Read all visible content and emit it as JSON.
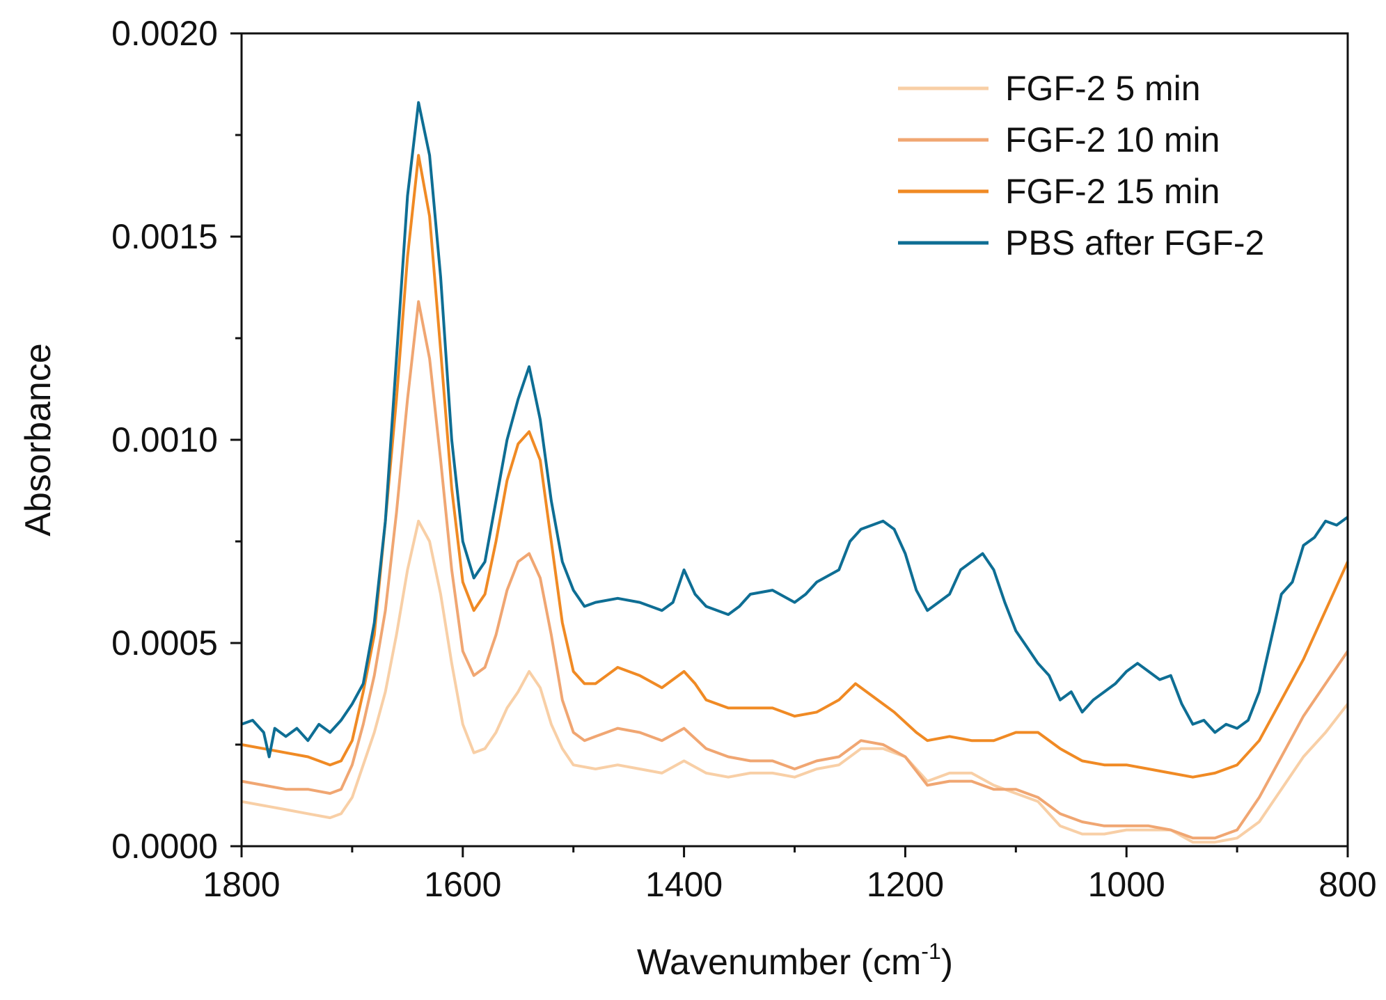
{
  "chart_data": {
    "type": "line",
    "title": "",
    "xlabel": "Wavenumber (cm",
    "xlabel_sup": "-1",
    "xlabel_close": ")",
    "ylabel": "Absorbance",
    "xlim": [
      1800,
      800
    ],
    "ylim": [
      0,
      0.002
    ],
    "x_reversed": true,
    "grid": false,
    "legend_position": "top-right",
    "x_ticks": [
      1800,
      1600,
      1400,
      1200,
      1000,
      800
    ],
    "x_tick_labels": [
      "1800",
      "1600",
      "1400",
      "1200",
      "1000",
      "800"
    ],
    "y_ticks": [
      0,
      0.0005,
      0.001,
      0.0015,
      0.002
    ],
    "y_tick_labels": [
      "0.0000",
      "0.0005",
      "0.0010",
      "0.0015",
      "0.0020"
    ],
    "series": [
      {
        "name": "FGF-2 5 min",
        "color": "#f8cfa6",
        "points": [
          [
            1800,
            0.00011
          ],
          [
            1780,
            0.0001
          ],
          [
            1760,
            9e-05
          ],
          [
            1740,
            8e-05
          ],
          [
            1720,
            7e-05
          ],
          [
            1710,
            8e-05
          ],
          [
            1700,
            0.00012
          ],
          [
            1690,
            0.0002
          ],
          [
            1680,
            0.00028
          ],
          [
            1670,
            0.00038
          ],
          [
            1660,
            0.00052
          ],
          [
            1650,
            0.00068
          ],
          [
            1640,
            0.0008
          ],
          [
            1630,
            0.00075
          ],
          [
            1620,
            0.00062
          ],
          [
            1610,
            0.00045
          ],
          [
            1600,
            0.0003
          ],
          [
            1590,
            0.00023
          ],
          [
            1580,
            0.00024
          ],
          [
            1570,
            0.00028
          ],
          [
            1560,
            0.00034
          ],
          [
            1550,
            0.00038
          ],
          [
            1540,
            0.00043
          ],
          [
            1530,
            0.00039
          ],
          [
            1520,
            0.0003
          ],
          [
            1510,
            0.00024
          ],
          [
            1500,
            0.0002
          ],
          [
            1480,
            0.00019
          ],
          [
            1460,
            0.0002
          ],
          [
            1440,
            0.00019
          ],
          [
            1420,
            0.00018
          ],
          [
            1400,
            0.00021
          ],
          [
            1380,
            0.00018
          ],
          [
            1360,
            0.00017
          ],
          [
            1340,
            0.00018
          ],
          [
            1320,
            0.00018
          ],
          [
            1300,
            0.00017
          ],
          [
            1280,
            0.00019
          ],
          [
            1260,
            0.0002
          ],
          [
            1240,
            0.00024
          ],
          [
            1220,
            0.00024
          ],
          [
            1200,
            0.00022
          ],
          [
            1180,
            0.00016
          ],
          [
            1160,
            0.00018
          ],
          [
            1140,
            0.00018
          ],
          [
            1120,
            0.00015
          ],
          [
            1100,
            0.00013
          ],
          [
            1080,
            0.00011
          ],
          [
            1060,
            5e-05
          ],
          [
            1040,
            3e-05
          ],
          [
            1020,
            3e-05
          ],
          [
            1000,
            4e-05
          ],
          [
            980,
            4e-05
          ],
          [
            960,
            4e-05
          ],
          [
            940,
            1e-05
          ],
          [
            920,
            1e-05
          ],
          [
            900,
            2e-05
          ],
          [
            880,
            6e-05
          ],
          [
            860,
            0.00014
          ],
          [
            840,
            0.00022
          ],
          [
            820,
            0.00028
          ],
          [
            800,
            0.00035
          ]
        ]
      },
      {
        "name": "FGF-2 10 min",
        "color": "#f0a672",
        "points": [
          [
            1800,
            0.00016
          ],
          [
            1780,
            0.00015
          ],
          [
            1760,
            0.00014
          ],
          [
            1740,
            0.00014
          ],
          [
            1720,
            0.00013
          ],
          [
            1710,
            0.00014
          ],
          [
            1700,
            0.0002
          ],
          [
            1690,
            0.0003
          ],
          [
            1680,
            0.00042
          ],
          [
            1670,
            0.00058
          ],
          [
            1660,
            0.00082
          ],
          [
            1650,
            0.0011
          ],
          [
            1640,
            0.00134
          ],
          [
            1630,
            0.0012
          ],
          [
            1620,
            0.00095
          ],
          [
            1610,
            0.00068
          ],
          [
            1600,
            0.00048
          ],
          [
            1590,
            0.00042
          ],
          [
            1580,
            0.00044
          ],
          [
            1570,
            0.00052
          ],
          [
            1560,
            0.00063
          ],
          [
            1550,
            0.0007
          ],
          [
            1540,
            0.00072
          ],
          [
            1530,
            0.00066
          ],
          [
            1520,
            0.00052
          ],
          [
            1510,
            0.00036
          ],
          [
            1500,
            0.00028
          ],
          [
            1490,
            0.00026
          ],
          [
            1480,
            0.00027
          ],
          [
            1460,
            0.00029
          ],
          [
            1440,
            0.00028
          ],
          [
            1420,
            0.00026
          ],
          [
            1400,
            0.00029
          ],
          [
            1380,
            0.00024
          ],
          [
            1360,
            0.00022
          ],
          [
            1340,
            0.00021
          ],
          [
            1320,
            0.00021
          ],
          [
            1300,
            0.00019
          ],
          [
            1280,
            0.00021
          ],
          [
            1260,
            0.00022
          ],
          [
            1240,
            0.00026
          ],
          [
            1220,
            0.00025
          ],
          [
            1200,
            0.00022
          ],
          [
            1180,
            0.00015
          ],
          [
            1160,
            0.00016
          ],
          [
            1140,
            0.00016
          ],
          [
            1120,
            0.00014
          ],
          [
            1100,
            0.00014
          ],
          [
            1080,
            0.00012
          ],
          [
            1060,
            8e-05
          ],
          [
            1040,
            6e-05
          ],
          [
            1020,
            5e-05
          ],
          [
            1000,
            5e-05
          ],
          [
            980,
            5e-05
          ],
          [
            960,
            4e-05
          ],
          [
            940,
            2e-05
          ],
          [
            920,
            2e-05
          ],
          [
            900,
            4e-05
          ],
          [
            880,
            0.00012
          ],
          [
            860,
            0.00022
          ],
          [
            840,
            0.00032
          ],
          [
            820,
            0.0004
          ],
          [
            800,
            0.00048
          ]
        ]
      },
      {
        "name": "FGF-2 15 min",
        "color": "#f08a24",
        "points": [
          [
            1800,
            0.00025
          ],
          [
            1780,
            0.00024
          ],
          [
            1760,
            0.00023
          ],
          [
            1740,
            0.00022
          ],
          [
            1720,
            0.0002
          ],
          [
            1710,
            0.00021
          ],
          [
            1700,
            0.00026
          ],
          [
            1690,
            0.00038
          ],
          [
            1680,
            0.00052
          ],
          [
            1670,
            0.0008
          ],
          [
            1660,
            0.0011
          ],
          [
            1650,
            0.00145
          ],
          [
            1640,
            0.0017
          ],
          [
            1630,
            0.00155
          ],
          [
            1620,
            0.00122
          ],
          [
            1610,
            0.00088
          ],
          [
            1600,
            0.00065
          ],
          [
            1590,
            0.00058
          ],
          [
            1580,
            0.00062
          ],
          [
            1570,
            0.00075
          ],
          [
            1560,
            0.0009
          ],
          [
            1550,
            0.00099
          ],
          [
            1540,
            0.00102
          ],
          [
            1530,
            0.00095
          ],
          [
            1520,
            0.00075
          ],
          [
            1510,
            0.00055
          ],
          [
            1500,
            0.00043
          ],
          [
            1490,
            0.0004
          ],
          [
            1480,
            0.0004
          ],
          [
            1470,
            0.00042
          ],
          [
            1460,
            0.00044
          ],
          [
            1440,
            0.00042
          ],
          [
            1420,
            0.00039
          ],
          [
            1400,
            0.00043
          ],
          [
            1390,
            0.0004
          ],
          [
            1380,
            0.00036
          ],
          [
            1360,
            0.00034
          ],
          [
            1340,
            0.00034
          ],
          [
            1320,
            0.00034
          ],
          [
            1300,
            0.00032
          ],
          [
            1280,
            0.00033
          ],
          [
            1260,
            0.00036
          ],
          [
            1245,
            0.0004
          ],
          [
            1230,
            0.00037
          ],
          [
            1210,
            0.00033
          ],
          [
            1190,
            0.00028
          ],
          [
            1180,
            0.00026
          ],
          [
            1160,
            0.00027
          ],
          [
            1140,
            0.00026
          ],
          [
            1120,
            0.00026
          ],
          [
            1100,
            0.00028
          ],
          [
            1080,
            0.00028
          ],
          [
            1060,
            0.00024
          ],
          [
            1040,
            0.00021
          ],
          [
            1020,
            0.0002
          ],
          [
            1000,
            0.0002
          ],
          [
            980,
            0.00019
          ],
          [
            960,
            0.00018
          ],
          [
            940,
            0.00017
          ],
          [
            920,
            0.00018
          ],
          [
            900,
            0.0002
          ],
          [
            880,
            0.00026
          ],
          [
            860,
            0.00036
          ],
          [
            840,
            0.00046
          ],
          [
            820,
            0.00058
          ],
          [
            800,
            0.0007
          ]
        ]
      },
      {
        "name": "PBS after FGF-2",
        "color": "#0e6e94",
        "points": [
          [
            1800,
            0.0003
          ],
          [
            1790,
            0.00031
          ],
          [
            1780,
            0.00028
          ],
          [
            1775,
            0.00022
          ],
          [
            1770,
            0.00029
          ],
          [
            1760,
            0.00027
          ],
          [
            1750,
            0.00029
          ],
          [
            1740,
            0.00026
          ],
          [
            1730,
            0.0003
          ],
          [
            1720,
            0.00028
          ],
          [
            1710,
            0.00031
          ],
          [
            1700,
            0.00035
          ],
          [
            1690,
            0.0004
          ],
          [
            1680,
            0.00055
          ],
          [
            1670,
            0.0008
          ],
          [
            1660,
            0.0012
          ],
          [
            1650,
            0.0016
          ],
          [
            1640,
            0.00183
          ],
          [
            1630,
            0.0017
          ],
          [
            1620,
            0.0014
          ],
          [
            1610,
            0.001
          ],
          [
            1600,
            0.00075
          ],
          [
            1590,
            0.00066
          ],
          [
            1580,
            0.0007
          ],
          [
            1570,
            0.00085
          ],
          [
            1560,
            0.001
          ],
          [
            1550,
            0.0011
          ],
          [
            1540,
            0.00118
          ],
          [
            1530,
            0.00105
          ],
          [
            1520,
            0.00085
          ],
          [
            1510,
            0.0007
          ],
          [
            1500,
            0.00063
          ],
          [
            1490,
            0.00059
          ],
          [
            1480,
            0.0006
          ],
          [
            1460,
            0.00061
          ],
          [
            1440,
            0.0006
          ],
          [
            1420,
            0.00058
          ],
          [
            1410,
            0.0006
          ],
          [
            1400,
            0.00068
          ],
          [
            1390,
            0.00062
          ],
          [
            1380,
            0.00059
          ],
          [
            1360,
            0.00057
          ],
          [
            1350,
            0.00059
          ],
          [
            1340,
            0.00062
          ],
          [
            1320,
            0.00063
          ],
          [
            1300,
            0.0006
          ],
          [
            1290,
            0.00062
          ],
          [
            1280,
            0.00065
          ],
          [
            1260,
            0.00068
          ],
          [
            1250,
            0.00075
          ],
          [
            1240,
            0.00078
          ],
          [
            1230,
            0.00079
          ],
          [
            1220,
            0.0008
          ],
          [
            1210,
            0.00078
          ],
          [
            1200,
            0.00072
          ],
          [
            1190,
            0.00063
          ],
          [
            1180,
            0.00058
          ],
          [
            1170,
            0.0006
          ],
          [
            1160,
            0.00062
          ],
          [
            1150,
            0.00068
          ],
          [
            1140,
            0.0007
          ],
          [
            1130,
            0.00072
          ],
          [
            1120,
            0.00068
          ],
          [
            1110,
            0.0006
          ],
          [
            1100,
            0.00053
          ],
          [
            1090,
            0.00049
          ],
          [
            1080,
            0.00045
          ],
          [
            1070,
            0.00042
          ],
          [
            1060,
            0.00036
          ],
          [
            1050,
            0.00038
          ],
          [
            1040,
            0.00033
          ],
          [
            1030,
            0.00036
          ],
          [
            1020,
            0.00038
          ],
          [
            1010,
            0.0004
          ],
          [
            1000,
            0.00043
          ],
          [
            990,
            0.00045
          ],
          [
            980,
            0.00043
          ],
          [
            970,
            0.00041
          ],
          [
            960,
            0.00042
          ],
          [
            950,
            0.00035
          ],
          [
            940,
            0.0003
          ],
          [
            930,
            0.00031
          ],
          [
            920,
            0.00028
          ],
          [
            910,
            0.0003
          ],
          [
            900,
            0.00029
          ],
          [
            890,
            0.00031
          ],
          [
            880,
            0.00038
          ],
          [
            870,
            0.0005
          ],
          [
            860,
            0.00062
          ],
          [
            850,
            0.00065
          ],
          [
            840,
            0.00074
          ],
          [
            830,
            0.00076
          ],
          [
            820,
            0.0008
          ],
          [
            810,
            0.00079
          ],
          [
            800,
            0.00081
          ]
        ]
      }
    ]
  }
}
